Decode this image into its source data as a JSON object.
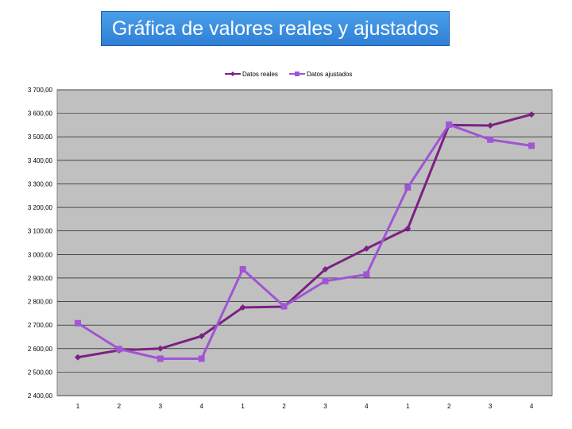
{
  "chart_data": {
    "type": "line",
    "title": "Gráfica de valores reales y ajustados",
    "categories": [
      "1",
      "2",
      "3",
      "4",
      "1",
      "2",
      "3",
      "4",
      "1",
      "2",
      "3",
      "4"
    ],
    "ylim": [
      2400,
      3700
    ],
    "ytick_step": 100,
    "ytick_labels": [
      "2 400,00",
      "2 500,00",
      "2 600,00",
      "2 700,00",
      "2 800,00",
      "2 900,00",
      "3 000,00",
      "3 100,00",
      "3 200,00",
      "3 300,00",
      "3 400,00",
      "3 500,00",
      "3 600,00",
      "3 700,00"
    ],
    "grid": true,
    "legend": "top-center",
    "series": [
      {
        "name": "Datos reales",
        "color": "#7b2182",
        "marker": "diamond",
        "values": [
          2563,
          2593,
          2600,
          2653,
          2775,
          2778,
          2937,
          3025,
          3110,
          3550,
          3548,
          3595
        ]
      },
      {
        "name": "Datos ajustados",
        "color": "#a055d4",
        "marker": "square",
        "values": [
          2708,
          2598,
          2557,
          2557,
          2937,
          2780,
          2887,
          2915,
          3285,
          3552,
          3488,
          3462
        ]
      }
    ]
  }
}
